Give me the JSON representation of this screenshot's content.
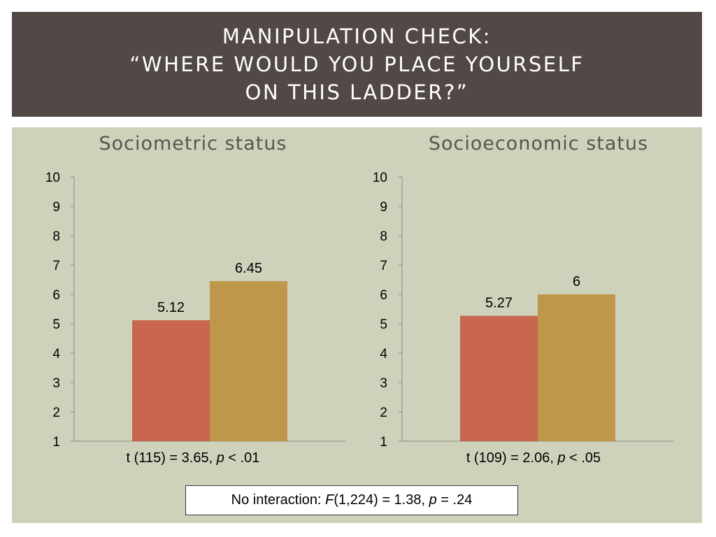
{
  "title": {
    "lines": [
      "Manipulation check:",
      "“Where would you place yourself",
      "on this ladder?”"
    ]
  },
  "footer": {
    "interaction": {
      "prefix": "No interaction: ",
      "f_symbol": "F",
      "f_args": "(1,224) = 1.38, ",
      "p_symbol": "p",
      "p_value": " = .24"
    }
  },
  "colors": {
    "bar1": "#c86650",
    "bar2": "#bf974a",
    "panel": "#cfd2bb",
    "header": "#524947"
  },
  "chart_data": [
    {
      "type": "bar",
      "title": "Sociometric status",
      "categories": [
        "",
        ""
      ],
      "values": [
        5.12,
        6.45
      ],
      "value_labels": [
        "5.12",
        "6.45"
      ],
      "yticks": [
        "1",
        "2",
        "3",
        "4",
        "5",
        "6",
        "7",
        "8",
        "9",
        "10"
      ],
      "ylim": [
        1,
        10
      ],
      "xlabel": "",
      "ylabel": "",
      "stat": {
        "prefix": "t (115) = 3.65, ",
        "p_symbol": "p",
        "suffix": " < .01"
      }
    },
    {
      "type": "bar",
      "title": "Socioeconomic status",
      "categories": [
        "",
        ""
      ],
      "values": [
        5.27,
        6
      ],
      "value_labels": [
        "5.27",
        "6"
      ],
      "yticks": [
        "1",
        "2",
        "3",
        "4",
        "5",
        "6",
        "7",
        "8",
        "9",
        "10"
      ],
      "ylim": [
        1,
        10
      ],
      "xlabel": "",
      "ylabel": "",
      "stat": {
        "prefix": "t (109) = 2.06, ",
        "p_symbol": "p",
        "suffix": " < .05"
      }
    }
  ]
}
